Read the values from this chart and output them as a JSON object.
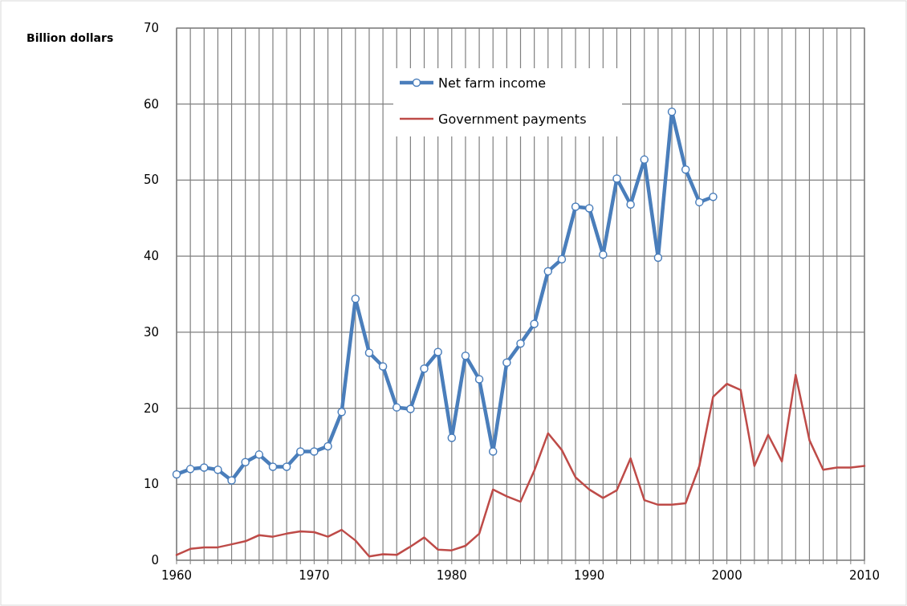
{
  "chart_data": {
    "type": "line",
    "ylabel": "Billion dollars",
    "xlim": [
      1960,
      2010
    ],
    "ylim": [
      0,
      70
    ],
    "yticks": [
      0,
      10,
      20,
      30,
      40,
      50,
      60,
      70
    ],
    "xticks": [
      1960,
      {
        "value": 1961,
        "label": null
      },
      {
        "value": 1962,
        "label": null
      },
      {
        "value": 1963,
        "label": null
      },
      {
        "value": 1964,
        "label": null
      },
      {
        "value": 1965,
        "label": null
      },
      {
        "value": 1966,
        "label": null
      },
      {
        "value": 1967,
        "label": null
      },
      {
        "value": 1968,
        "label": null
      },
      {
        "value": 1969,
        "label": null
      },
      1970,
      {
        "value": 1971,
        "label": null
      },
      {
        "value": 1972,
        "label": null
      },
      {
        "value": 1973,
        "label": null
      },
      {
        "value": 1974,
        "label": null
      },
      {
        "value": 1975,
        "label": null
      },
      {
        "value": 1976,
        "label": null
      },
      {
        "value": 1977,
        "label": null
      },
      {
        "value": 1978,
        "label": null
      },
      {
        "value": 1979,
        "label": null
      },
      1980,
      {
        "value": 1981,
        "label": null
      },
      {
        "value": 1982,
        "label": null
      },
      {
        "value": 1983,
        "label": null
      },
      {
        "value": 1984,
        "label": null
      },
      {
        "value": 1985,
        "label": null
      },
      {
        "value": 1986,
        "label": null
      },
      {
        "value": 1987,
        "label": null
      },
      {
        "value": 1988,
        "label": null
      },
      {
        "value": 1989,
        "label": null
      },
      1990,
      {
        "value": 1991,
        "label": null
      },
      {
        "value": 1992,
        "label": null
      },
      {
        "value": 1993,
        "label": null
      },
      {
        "value": 1994,
        "label": null
      },
      {
        "value": 1995,
        "label": null
      },
      {
        "value": 1996,
        "label": null
      },
      {
        "value": 1997,
        "label": null
      },
      {
        "value": 1998,
        "label": null
      },
      {
        "value": 1999,
        "label": null
      },
      2000,
      {
        "value": 2001,
        "label": null
      },
      {
        "value": 2002,
        "label": null
      },
      {
        "value": 2003,
        "label": null
      },
      {
        "value": 2004,
        "label": null
      },
      {
        "value": 2005,
        "label": null
      },
      {
        "value": 2006,
        "label": null
      },
      {
        "value": 2007,
        "label": null
      },
      {
        "value": 2008,
        "label": null
      },
      {
        "value": 2009,
        "label": null
      },
      2010
    ],
    "grid": true,
    "legend": "top",
    "line_style": "solid",
    "series": [
      {
        "name": "Net farm income",
        "color": "#4a7ebb",
        "marker": "circle",
        "x": [
          1960,
          1961,
          1962,
          1963,
          1964,
          1965,
          1966,
          1967,
          1968,
          1969,
          1970,
          1971,
          1972,
          1973,
          1974,
          1975,
          1976,
          1977,
          1978,
          1979,
          1980,
          1981,
          1982,
          1983,
          1984,
          1985,
          1986,
          1987,
          1988,
          1989,
          1990,
          1991,
          1992,
          1993,
          1994,
          1995,
          1996,
          1997,
          1998,
          1999
        ],
        "values": [
          11.3,
          12.0,
          12.2,
          11.9,
          10.5,
          12.9,
          13.9,
          12.3,
          12.3,
          14.3,
          14.3,
          15.0,
          19.5,
          34.4,
          27.3,
          25.5,
          20.1,
          19.9,
          25.2,
          27.4,
          16.1,
          26.9,
          23.8,
          14.3,
          26.0,
          28.5,
          31.1,
          38.0,
          39.6,
          46.5,
          46.3,
          40.2,
          50.2,
          46.8,
          52.7,
          39.8,
          59.0,
          51.4,
          47.1,
          47.8
        ]
      },
      {
        "name": "Government payments",
        "color": "#be4b48",
        "marker": "none",
        "x": [
          1960,
          1961,
          1962,
          1963,
          1964,
          1965,
          1966,
          1967,
          1968,
          1969,
          1970,
          1971,
          1972,
          1973,
          1974,
          1975,
          1976,
          1977,
          1978,
          1979,
          1980,
          1981,
          1982,
          1983,
          1984,
          1985,
          1986,
          1987,
          1988,
          1989,
          1990,
          1991,
          1992,
          1993,
          1994,
          1995,
          1996,
          1997,
          1998,
          1999,
          2000,
          2001,
          2002,
          2003,
          2004,
          2005,
          2006,
          2007,
          2008,
          2009,
          2010
        ],
        "values": [
          0.7,
          1.5,
          1.7,
          1.7,
          2.1,
          2.5,
          3.3,
          3.1,
          3.5,
          3.8,
          3.7,
          3.1,
          4.0,
          2.6,
          0.5,
          0.8,
          0.7,
          1.8,
          3.0,
          1.4,
          1.3,
          1.9,
          3.5,
          9.3,
          8.4,
          7.7,
          11.8,
          16.7,
          14.5,
          10.9,
          9.3,
          8.2,
          9.2,
          13.4,
          7.9,
          7.3,
          7.3,
          7.5,
          12.4,
          21.5,
          23.2,
          22.4,
          12.4,
          16.5,
          13.0,
          24.4,
          15.8,
          11.9,
          12.2,
          12.2,
          12.4
        ]
      }
    ]
  }
}
